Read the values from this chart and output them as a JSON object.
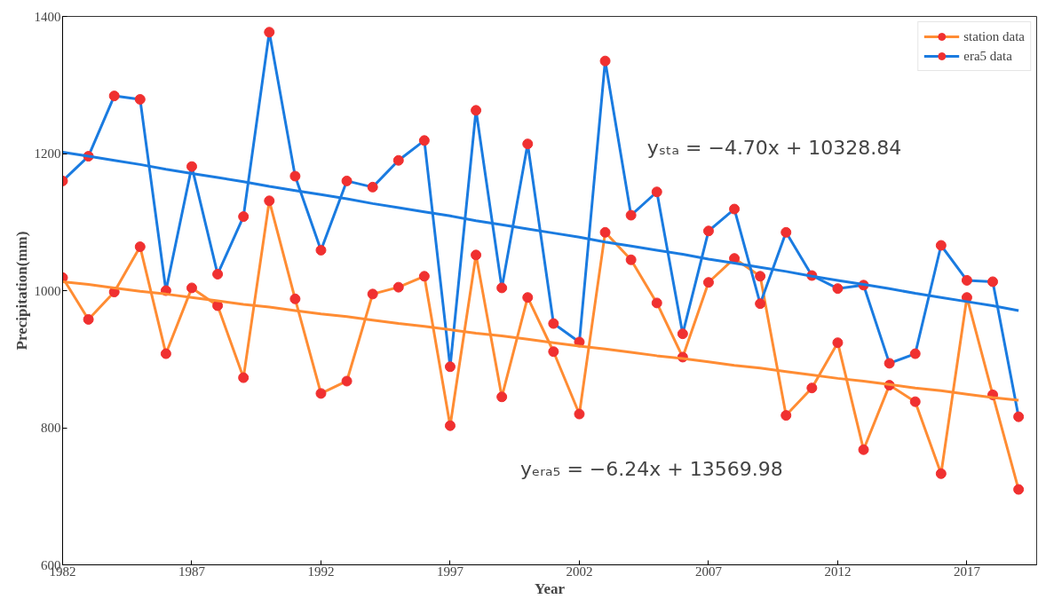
{
  "chart_data": {
    "type": "line",
    "xlabel": "Year",
    "ylabel": "Precipitation(mm)",
    "xlim": [
      1982,
      2019.7
    ],
    "xticks": [
      1982,
      1987,
      1992,
      1997,
      2002,
      2007,
      2012,
      2017
    ],
    "ylim": [
      600,
      1400
    ],
    "yticks": [
      600,
      800,
      1000,
      1200,
      1400
    ],
    "grid": false,
    "legend": "top right",
    "marker": "circle",
    "line_style": "solid",
    "x": [
      1982,
      1983,
      1984,
      1985,
      1986,
      1987,
      1988,
      1989,
      1990,
      1991,
      1992,
      1993,
      1994,
      1995,
      1996,
      1997,
      1998,
      1999,
      2000,
      2001,
      2002,
      2003,
      2004,
      2005,
      2006,
      2007,
      2008,
      2009,
      2010,
      2011,
      2012,
      2013,
      2014,
      2015,
      2016,
      2017,
      2018,
      2019
    ],
    "series": [
      {
        "name": "station data",
        "color": "#ff8c33",
        "values": [
          1019,
          958,
          998,
          1064,
          908,
          1004,
          978,
          873,
          1131,
          988,
          850,
          868,
          995,
          1005,
          1021,
          803,
          1052,
          845,
          990,
          911,
          820,
          1085,
          1045,
          982,
          903,
          1012,
          1047,
          1021,
          818,
          858,
          924,
          768,
          862,
          838,
          733,
          990,
          848,
          710
        ]
      },
      {
        "name": "era5 data",
        "color": "#1a7be0",
        "values": [
          1160,
          1196,
          1284,
          1279,
          1000,
          1181,
          1024,
          1108,
          1377,
          1167,
          1059,
          1160,
          1151,
          1190,
          1219,
          889,
          1263,
          1004,
          1214,
          952,
          925,
          1335,
          1110,
          1144,
          937,
          1087,
          1119,
          981,
          1085,
          1022,
          1003,
          1008,
          894,
          908,
          1066,
          1015,
          1013,
          816
        ]
      },
      {
        "type": "line",
        "color": "#ff8c33",
        "marker": "none",
        "values": [
          1013,
          1009,
          1004,
          999,
          995,
          990,
          985,
          980,
          976,
          971,
          966,
          962,
          957,
          952,
          948,
          943,
          938,
          934,
          929,
          924,
          919,
          915,
          910,
          905,
          901,
          896,
          891,
          887,
          882,
          877,
          872,
          868,
          863,
          858,
          854,
          849,
          844,
          840
        ]
      },
      {
        "type": "line",
        "color": "#1a7be0",
        "marker": "none",
        "values": [
          1202,
          1196,
          1190,
          1184,
          1177,
          1171,
          1165,
          1159,
          1152,
          1146,
          1140,
          1134,
          1127,
          1121,
          1115,
          1109,
          1102,
          1096,
          1090,
          1084,
          1078,
          1071,
          1065,
          1059,
          1053,
          1046,
          1040,
          1034,
          1028,
          1021,
          1015,
          1009,
          1003,
          996,
          990,
          984,
          978,
          971
        ]
      }
    ],
    "annotations": [
      "yₛₜₐ = −4.70x + 10328.84",
      "yₑᵣₐ₅ = −6.24x + 13569.98"
    ]
  }
}
